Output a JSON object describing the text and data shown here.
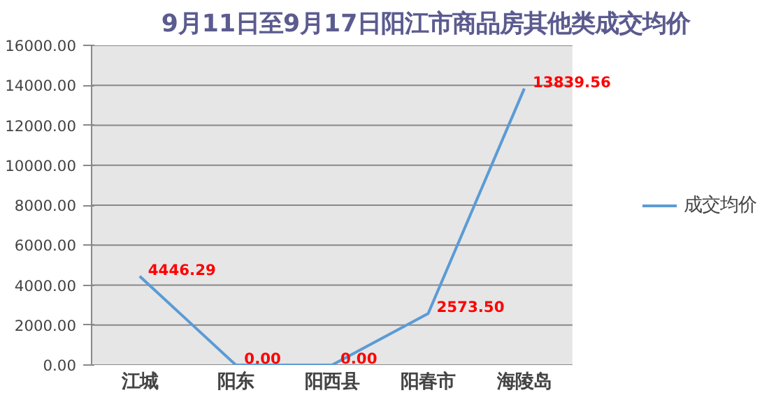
{
  "chart_data": {
    "type": "line",
    "title": "9月11日至9月17日阳江市商品房其他类成交均价",
    "categories": [
      "江城",
      "阳东",
      "阳西县",
      "阳春市",
      "海陵岛"
    ],
    "series": [
      {
        "name": "成交均价",
        "color": "#5b9bd5",
        "values": [
          4446.29,
          0.0,
          0.0,
          2573.5,
          13839.56
        ],
        "value_labels": [
          "4446.29",
          "0.00",
          "0.00",
          "2573.50",
          "13839.56"
        ]
      }
    ],
    "ylim": [
      0,
      16000
    ],
    "yticks": [
      {
        "value": 0,
        "label": "0.00"
      },
      {
        "value": 2000,
        "label": "2000.00"
      },
      {
        "value": 4000,
        "label": "4000.00"
      },
      {
        "value": 6000,
        "label": "6000.00"
      },
      {
        "value": 8000,
        "label": "8000.00"
      },
      {
        "value": 10000,
        "label": "10000.00"
      },
      {
        "value": 12000,
        "label": "12000.00"
      },
      {
        "value": 14000,
        "label": "14000.00"
      },
      {
        "value": 16000,
        "label": "16000.00"
      }
    ],
    "grid": "y",
    "legend": "right",
    "marker": "none",
    "line_style": "solid"
  }
}
